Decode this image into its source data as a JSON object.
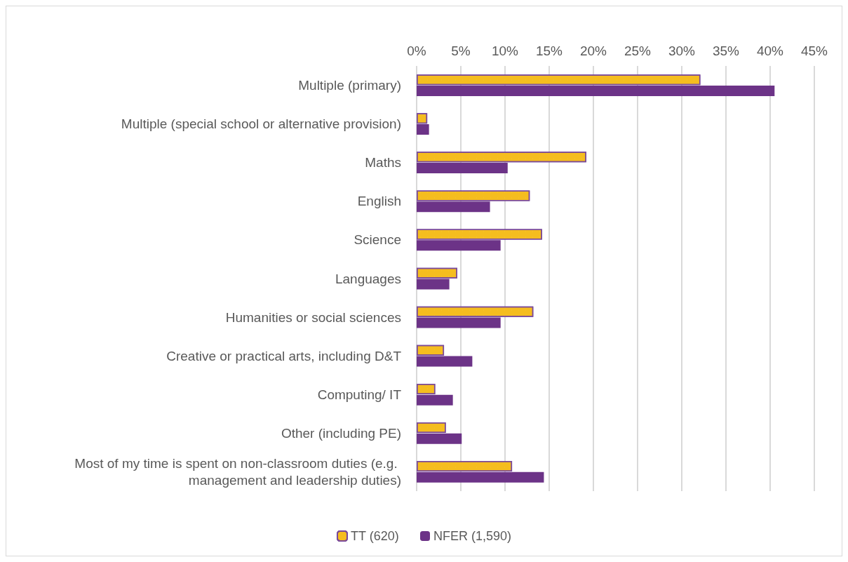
{
  "chart_data": {
    "type": "bar",
    "orientation": "horizontal",
    "categories": [
      "Multiple (primary)",
      "Multiple (special school or alternative provision)",
      "Maths",
      "English",
      "Science",
      "Languages",
      "Humanities or social sciences",
      "Creative or practical arts, including D&T",
      "Computing/ IT",
      "Other (including PE)",
      "Most of my time is spent on non-classroom duties (e.g. management and leadership duties)"
    ],
    "series": [
      {
        "name": "TT (620)",
        "color": "#f5bd1f",
        "values": [
          32.1,
          1.2,
          19.2,
          12.8,
          14.2,
          4.6,
          13.2,
          3.1,
          2.1,
          3.3,
          10.8
        ]
      },
      {
        "name": "NFER (1,590)",
        "color": "#6c3387",
        "values": [
          40.5,
          1.4,
          10.3,
          8.3,
          9.5,
          3.7,
          9.5,
          6.3,
          4.1,
          5.1,
          14.4
        ]
      }
    ],
    "xlim": [
      0,
      45
    ],
    "xticks": [
      {
        "value": 0,
        "label": "0%"
      },
      {
        "value": 5,
        "label": "5%"
      },
      {
        "value": 10,
        "label": "10%"
      },
      {
        "value": 15,
        "label": "15%"
      },
      {
        "value": 20,
        "label": "20%"
      },
      {
        "value": 25,
        "label": "25%"
      },
      {
        "value": 30,
        "label": "30%"
      },
      {
        "value": 35,
        "label": "35%"
      },
      {
        "value": 40,
        "label": "40%"
      },
      {
        "value": 45,
        "label": "45%"
      }
    ],
    "grid": "x",
    "legend": "bottom"
  }
}
